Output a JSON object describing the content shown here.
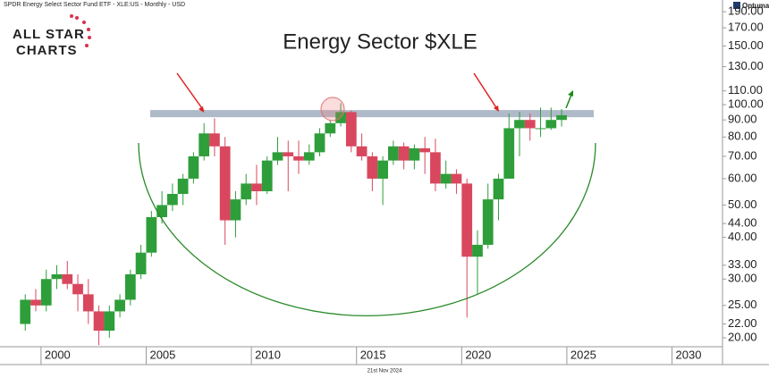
{
  "chart_data": {
    "type": "candlestick",
    "title": "Energy Sector $XLE",
    "subtitle": "SPDR Energy Select Sector Fund ETF - XLE:US - Monthly - USD",
    "footer": "21st Nov 2024",
    "brand": [
      "ALL STAR",
      "CHARTS"
    ],
    "vendor": "Optuma",
    "log_scale": true,
    "up_color": "#2e9e3a",
    "down_color": "#d9475e",
    "resistance": 94,
    "x": [
      1999.0,
      1999.5,
      2000.0,
      2000.5,
      2001.0,
      2001.5,
      2002.0,
      2002.5,
      2003.0,
      2003.5,
      2004.0,
      2004.5,
      2005.0,
      2005.5,
      2006.0,
      2006.5,
      2007.0,
      2007.5,
      2008.0,
      2008.5,
      2009.0,
      2009.5,
      2010.0,
      2010.5,
      2011.0,
      2011.5,
      2012.0,
      2012.5,
      2013.0,
      2013.5,
      2014.0,
      2014.5,
      2015.0,
      2015.5,
      2016.0,
      2016.5,
      2017.0,
      2017.5,
      2018.0,
      2018.5,
      2019.0,
      2019.5,
      2020.0,
      2020.5,
      2021.0,
      2021.5,
      2022.0,
      2022.5,
      2023.0,
      2023.5,
      2024.0,
      2024.5
    ],
    "open": [
      22,
      26,
      25,
      30,
      31,
      29,
      27,
      24,
      21,
      24,
      26,
      31,
      36,
      46,
      50,
      54,
      60,
      70,
      82,
      75,
      45,
      52,
      58,
      55,
      68,
      72,
      70,
      68,
      72,
      82,
      88,
      95,
      75,
      70,
      60,
      68,
      75,
      68,
      74,
      72,
      58,
      62,
      58,
      35,
      38,
      52,
      60,
      85,
      90,
      85,
      85,
      90
    ],
    "high": [
      27,
      28,
      32,
      33,
      34,
      31,
      30,
      25,
      25,
      27,
      32,
      38,
      48,
      55,
      58,
      62,
      72,
      88,
      91,
      80,
      55,
      62,
      66,
      70,
      80,
      78,
      78,
      76,
      85,
      90,
      101,
      96,
      82,
      72,
      70,
      78,
      77,
      76,
      80,
      79,
      68,
      64,
      60,
      42,
      58,
      62,
      94,
      95,
      94,
      98,
      98,
      97
    ],
    "low": [
      21,
      24,
      24,
      28,
      28,
      24,
      22,
      19,
      20,
      23,
      25,
      30,
      35,
      44,
      48,
      50,
      58,
      68,
      70,
      38,
      40,
      50,
      50,
      54,
      66,
      55,
      62,
      66,
      70,
      80,
      86,
      72,
      68,
      55,
      50,
      66,
      64,
      64,
      62,
      55,
      56,
      54,
      23,
      27,
      37,
      45,
      60,
      70,
      78,
      80,
      84,
      86
    ],
    "close": [
      26,
      25,
      30,
      31,
      29,
      27,
      24,
      21,
      24,
      26,
      31,
      36,
      46,
      50,
      54,
      60,
      70,
      82,
      75,
      45,
      52,
      58,
      55,
      68,
      72,
      70,
      68,
      72,
      82,
      88,
      95,
      75,
      70,
      60,
      68,
      75,
      68,
      74,
      72,
      58,
      62,
      58,
      35,
      38,
      52,
      60,
      85,
      90,
      85,
      85,
      90,
      93
    ],
    "xlim": [
      1998.05,
      2032.4
    ],
    "xticks": [
      2000,
      2005,
      2010,
      2015,
      2020,
      2025,
      2030
    ],
    "ylim": [
      18.8,
      206
    ],
    "yticks": [
      {
        "value": 20,
        "label": "20.00"
      },
      {
        "value": 22,
        "label": "22.00"
      },
      {
        "value": 25,
        "label": "25.00"
      },
      {
        "value": 30,
        "label": "30.00"
      },
      {
        "value": 33,
        "label": "33.00"
      },
      {
        "value": 40,
        "label": "40.00"
      },
      {
        "value": 44,
        "label": "44.00"
      },
      {
        "value": 50,
        "label": "50.00"
      },
      {
        "value": 60,
        "label": "60.00"
      },
      {
        "value": 70,
        "label": "70.00"
      },
      {
        "value": 80,
        "label": "80.00"
      },
      {
        "value": 90,
        "label": "90.00"
      },
      {
        "value": 100,
        "label": "100.00"
      },
      {
        "value": 110,
        "label": "110.00"
      },
      {
        "value": 130,
        "label": "130.00"
      },
      {
        "value": 150,
        "label": "150.00"
      },
      {
        "value": 170,
        "label": "170.00"
      },
      {
        "value": 190,
        "label": "190.00"
      }
    ]
  }
}
